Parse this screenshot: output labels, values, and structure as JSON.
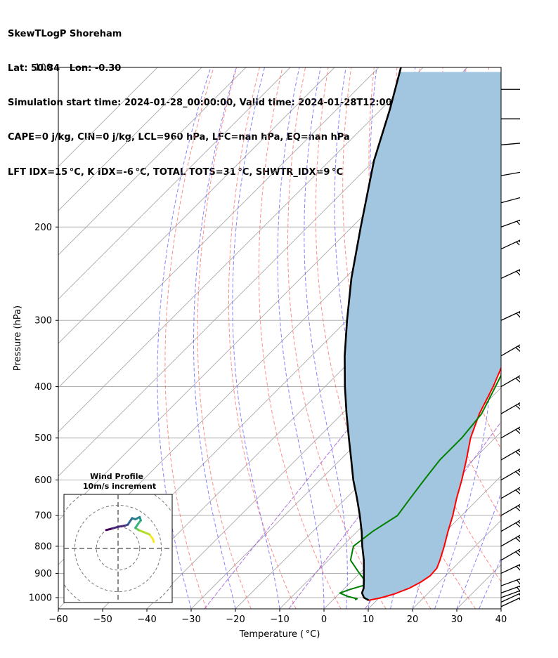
{
  "header": {
    "line1": "SkewTLogP Shoreham",
    "line2": "Lat: 50.84   Lon: -0.30",
    "line3": "Simulation start time: 2024-01-28_00:00:00, Valid time: 2024-01-28T12:00:00.00",
    "line4": "CAPE=0 j/kg, CIN=0 j/kg, LCL=960 hPa, LFC=nan hPa, EQ=nan hPa",
    "line5": "LFT IDX=15$^\\circ$C, K IDX=-6$^\\circ$C, TOTAL TOTS=31$^\\circ$C, SHWTR_IDX=9$^\\circ$C"
  },
  "header_display": {
    "line5": "LFT IDX=15 °C, K IDX=-6 °C, TOTAL TOTS=31 °C, SHWTR_IDX=9 °C"
  },
  "colors": {
    "temperature": "#ff0000",
    "dewpoint": "#008000",
    "parcel": "#000000",
    "cape_fill": "#a3c6e0",
    "dry_adiabat": "#ff6464",
    "moist_adiabat": "#5a5aff",
    "mixing_ratio": "#9b4fd0",
    "isotherm": "#aaaaaa",
    "grid": "#b0b0b0"
  },
  "chart_data": [
    {
      "type": "skew-t log-p",
      "xlabel": "Temperature ($^\\circ$C)",
      "xlabel_display": "Temperature ( °C)",
      "ylabel": "Pressure (hPa)",
      "xlim": [
        -60,
        40
      ],
      "ylim": [
        1050,
        100
      ],
      "y_scale": "log",
      "x_ticks": [
        -60,
        -50,
        -40,
        -30,
        -20,
        -10,
        0,
        10,
        20,
        30,
        40
      ],
      "x_tick_labels": [
        "−60",
        "−50",
        "−40",
        "−30",
        "−20",
        "−10",
        "0",
        "10",
        "20",
        "30",
        "40"
      ],
      "y_ticks": [
        1000,
        900,
        800,
        700,
        600,
        500,
        400,
        300,
        200,
        100
      ],
      "y_tick_labels": [
        "1000",
        "900",
        "800",
        "700",
        "600",
        "500",
        "400",
        "300",
        "200",
        "100"
      ],
      "grid": true,
      "series": [
        {
          "key": "temperature",
          "points": [
            [
              1012,
              8.2
            ],
            [
              1000,
              10.5
            ],
            [
              985,
              12.5
            ],
            [
              960,
              14.6
            ],
            [
              935,
              15.8
            ],
            [
              910,
              16.5
            ],
            [
              880,
              16.3
            ],
            [
              850,
              15.2
            ],
            [
              800,
              13.0
            ],
            [
              750,
              10.5
            ],
            [
              700,
              8.0
            ],
            [
              650,
              5.0
            ],
            [
              600,
              2.0
            ],
            [
              550,
              -1.5
            ],
            [
              500,
              -5.5
            ],
            [
              450,
              -9.0
            ],
            [
              400,
              -12.0
            ],
            [
              350,
              -16.0
            ],
            [
              300,
              -20.5
            ],
            [
              260,
              -24.0
            ],
            [
              240,
              -26.5
            ],
            [
              220,
              -28.5
            ],
            [
              200,
              -29.0
            ],
            [
              190,
              -29.5
            ],
            [
              180,
              -30.0
            ],
            [
              170,
              -29.5
            ],
            [
              160,
              -28.0
            ],
            [
              150,
              -27.0
            ],
            [
              140,
              -26.5
            ],
            [
              130,
              -27.0
            ],
            [
              120,
              -27.0
            ],
            [
              110,
              -27.5
            ],
            [
              100,
              -27.5
            ]
          ]
        },
        {
          "key": "dewpoint",
          "points": [
            [
              1010,
              5.0
            ],
            [
              1005,
              5.2
            ],
            [
              995,
              2.6
            ],
            [
              980,
              0.0
            ],
            [
              965,
              1.5
            ],
            [
              948,
              3.7
            ],
            [
              925,
              2.5
            ],
            [
              900,
              0.0
            ],
            [
              850,
              -5.0
            ],
            [
              800,
              -7.5
            ],
            [
              750,
              -6.5
            ],
            [
              700,
              -4.5
            ],
            [
              650,
              -5.5
            ],
            [
              600,
              -6.5
            ],
            [
              550,
              -7.5
            ],
            [
              500,
              -7.5
            ],
            [
              450,
              -8.5
            ],
            [
              400,
              -11.5
            ],
            [
              350,
              -15.0
            ],
            [
              320,
              -18.5
            ],
            [
              300,
              -20.5
            ],
            [
              280,
              -21.5
            ],
            [
              260,
              -23.0
            ],
            [
              240,
              -25.0
            ],
            [
              225,
              -27.0
            ],
            [
              210,
              -30.0
            ],
            [
              195,
              -32.5
            ],
            [
              180,
              -32.5
            ],
            [
              170,
              -32.0
            ],
            [
              160,
              -33.0
            ],
            [
              150,
              -35.5
            ],
            [
              140,
              -36.0
            ],
            [
              130,
              -37.0
            ],
            [
              120,
              -38.0
            ],
            [
              110,
              -37.5
            ],
            [
              100,
              -38.0
            ]
          ]
        },
        {
          "key": "parcel",
          "points": [
            [
              1012,
              8.2
            ],
            [
              1000,
              6.5
            ],
            [
              980,
              5.0
            ],
            [
              960,
              4.3
            ],
            [
              900,
              1.0
            ],
            [
              850,
              -2.0
            ],
            [
              800,
              -5.5
            ],
            [
              750,
              -9.0
            ],
            [
              700,
              -13.0
            ],
            [
              650,
              -17.5
            ],
            [
              600,
              -22.5
            ],
            [
              550,
              -27.5
            ],
            [
              500,
              -33.0
            ],
            [
              450,
              -39.0
            ],
            [
              400,
              -45.5
            ],
            [
              350,
              -52.5
            ],
            [
              300,
              -60.0
            ],
            [
              250,
              -68.5
            ],
            [
              200,
              -78.0
            ],
            [
              150,
              -90.0
            ],
            [
              120,
              -98.0
            ],
            [
              100,
              -105.0
            ]
          ]
        }
      ],
      "wind_barbs": {
        "pressures": [
          1040,
          1020,
          1000,
          980,
          950,
          900,
          850,
          800,
          750,
          700,
          650,
          600,
          550,
          500,
          450,
          400,
          350,
          300,
          250,
          220,
          200,
          180,
          160,
          140,
          125,
          110
        ],
        "direction_deg": [
          245,
          245,
          250,
          250,
          250,
          245,
          240,
          240,
          240,
          240,
          240,
          240,
          240,
          240,
          240,
          240,
          240,
          245,
          245,
          245,
          250,
          255,
          260,
          265,
          270,
          270
        ],
        "speed_kt": [
          25,
          30,
          30,
          35,
          40,
          40,
          40,
          40,
          40,
          40,
          40,
          40,
          40,
          40,
          40,
          40,
          40,
          40,
          40,
          35,
          35,
          30,
          25,
          25,
          20,
          20
        ]
      }
    },
    {
      "type": "hodograph",
      "title": "Wind Profile",
      "subtitle": "10m/s increment",
      "ring_increment_ms": 10,
      "rings": 3,
      "x_range_ms": [
        -25,
        25
      ],
      "y_range_ms": [
        -25,
        25
      ],
      "uv_path_ms": [
        [
          16.5,
          3.0
        ],
        [
          16.0,
          4.5
        ],
        [
          14.5,
          6.5
        ],
        [
          12.0,
          7.5
        ],
        [
          9.5,
          8.5
        ],
        [
          8.0,
          9.5
        ],
        [
          9.0,
          11.0
        ],
        [
          10.5,
          13.0
        ],
        [
          10.0,
          14.5
        ],
        [
          8.0,
          13.5
        ],
        [
          6.5,
          14.0
        ],
        [
          5.5,
          12.5
        ],
        [
          4.5,
          11.0
        ],
        [
          3.0,
          10.5
        ],
        [
          0.0,
          10.0
        ],
        [
          -3.5,
          9.0
        ],
        [
          -5.5,
          8.5
        ]
      ],
      "colormap": "viridis"
    }
  ]
}
